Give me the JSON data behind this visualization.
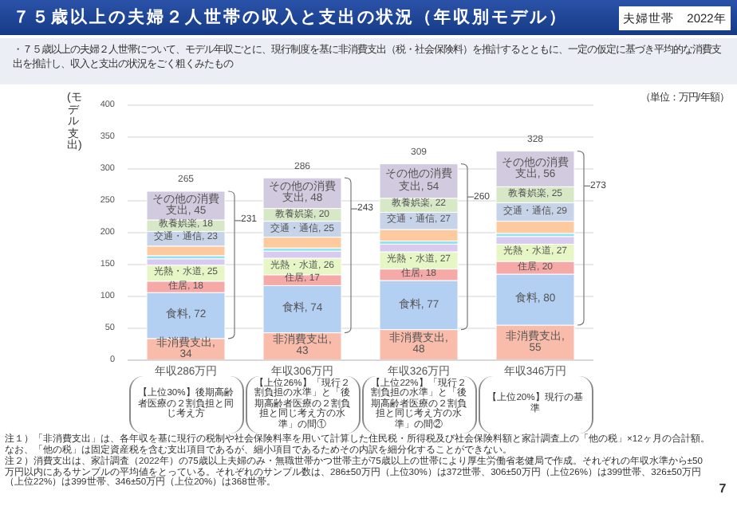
{
  "chart_data": {
    "type": "bar",
    "title": "７５歳以上の夫婦２人世帯の収入と支出の状況（年収別モデル）",
    "subtitle": "・７５歳以上の夫婦２人世帯について、モデル年収ごとに、現行制度を基に非消費支出（税・社会保険料）を推計するとともに、一定の仮定に基づき平均的な消費支出を推計し、収入と支出の状況をごく粗くみたもの",
    "ylabel": "(モデル支出)",
    "categories": [
      "年収286万円",
      "年収306万円",
      "年収326万円",
      "年収346万円"
    ],
    "stacked": true,
    "ylim": [
      0,
      400
    ],
    "yticks": [
      0,
      50,
      100,
      150,
      200,
      250,
      300,
      350,
      400
    ],
    "grid": "y",
    "series": [
      {
        "color": "#f9bcab",
        "values": [
          34,
          43,
          48,
          55
        ],
        "value_labels": [
          "非消費支出, 34",
          "非消費支出, 43",
          "非消費支出, 48",
          "非消費支出, 55"
        ]
      },
      {
        "color": "#b3cff2",
        "values": [
          72,
          74,
          77,
          80
        ],
        "value_labels": [
          "食料, 72",
          "食料, 74",
          "食料, 77",
          "食料, 80"
        ]
      },
      {
        "color": "#f6aaa8",
        "values": [
          18,
          17,
          18,
          20
        ],
        "value_labels": [
          "住居, 18",
          "住居, 17",
          "住居, 18",
          "住居, 20"
        ]
      },
      {
        "color": "#e6f6c4",
        "values": [
          25,
          26,
          27,
          27
        ],
        "value_labels": [
          "光熱・水道, 25",
          "光熱・水道, 26",
          "光熱・水道, 27",
          "光熱・水道, 27"
        ]
      },
      {
        "color": "#d9cbef",
        "values": [
          10,
          11,
          12,
          12
        ]
      },
      {
        "color": "#94e1f2",
        "values": [
          5,
          5,
          5,
          5
        ]
      },
      {
        "color": "#fcca9e",
        "values": [
          15,
          17,
          18,
          19
        ]
      },
      {
        "color": "#c6d3e9",
        "values": [
          23,
          25,
          27,
          29
        ],
        "value_labels": [
          "交通・通信, 23",
          "交通・通信, 25",
          "交通・通信, 27",
          "交通・通信, 29"
        ]
      },
      {
        "color": "#d6e8c6",
        "values": [
          18,
          20,
          22,
          25
        ],
        "value_labels": [
          "教養娯楽, 18",
          "教養娯楽, 20",
          "教養娯楽, 22",
          "教養娯楽, 25"
        ]
      },
      {
        "color": "#d2cbdf",
        "values": [
          45,
          48,
          54,
          56
        ],
        "value_labels": [
          "その他の消費支出, 45",
          "その他の消費支出, 48",
          "その他の消費支出, 54",
          "その他の消費支出, 56"
        ]
      }
    ],
    "totals": [
      "265",
      "286",
      "309",
      "328"
    ],
    "annotations": [
      "夫婦世帯　2022年",
      "（単位：万円/年額）",
      "注１）「非消費支出」は、各年収を基に現行の税制や社会保険料率を用いて計算した住民税・所得税及び社会保険料額と家計調査上の「他の税」×12ヶ月の合計額。なお、「他の税」は固定資産税を含む支出項目であるが、細小項目であるためその内訳を細分化することができない。",
      "注２）消費支出は、家計調査（2022年）の75歳以上夫婦のみ・無職世帯かつ世帯主が75歳以上の世帯により厚生労働省老健局で作成。それぞれの年収水準から±50万円以内にあるサンプルの平均値をとっている。それぞれのサンプル数は、286±50万円（上位30%）は372世帯、306±50万円（上位26%）は399世帯、326±50万円（上位22%）は399世帯、346±50万円（上位20%）は368世帯。",
      "7",
      "231",
      "243",
      "260",
      "273",
      "【上位30%】後期高齢者医療の２割負担と同じ考え方",
      "【上位26%】「現行２割負担の水準」と「後期高齢者医療の２割負担と同じ考え方の水準」の間①",
      "【上位22%】「現行２割負担の水準」と「後期高齢者医療の２割負担と同じ考え方の水準」の間②",
      "【上位20%】現行の基準"
    ]
  }
}
